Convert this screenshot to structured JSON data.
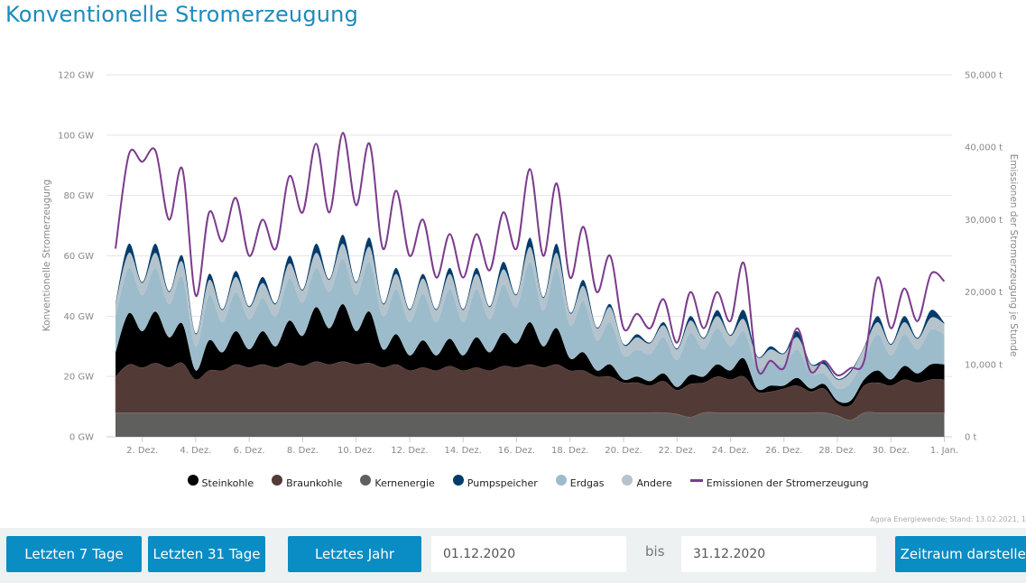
{
  "title": "Konventionelle Stromerzeugung",
  "source": "Agora Energiewende; Stand: 13.02.2021, 1",
  "controls": {
    "btn_7": "Letzten 7 Tage",
    "btn_31": "Letzten 31 Tage",
    "btn_year": "Letztes Jahr",
    "from_value": "01.12.2020",
    "bis": "bis",
    "to_value": "31.12.2020",
    "show": "Zeitraum darstellen"
  },
  "chart_data": {
    "type": "area",
    "title": "Konventionelle Stromerzeugung",
    "ylabel": "Konventionelle Stromerzeugung",
    "y2label": "Emissionen der Stromerzeugung je Stunde",
    "ylim": [
      0,
      120
    ],
    "y2lim": [
      0,
      50000
    ],
    "yticks": [
      "0 GW",
      "20 GW",
      "40 GW",
      "60 GW",
      "80 GW",
      "100 GW",
      "120 GW"
    ],
    "y2ticks": [
      "0 t",
      "10,000 t",
      "20,000 t",
      "30,000 t",
      "40,000 t",
      "50,000 t"
    ],
    "xticks": [
      {
        "day": 2,
        "label": "2. Dez."
      },
      {
        "day": 4,
        "label": "4. Dez."
      },
      {
        "day": 6,
        "label": "6. Dez."
      },
      {
        "day": 8,
        "label": "8. Dez."
      },
      {
        "day": 10,
        "label": "10. Dez."
      },
      {
        "day": 12,
        "label": "12. Dez."
      },
      {
        "day": 14,
        "label": "14. Dez."
      },
      {
        "day": 16,
        "label": "16. Dez."
      },
      {
        "day": 18,
        "label": "18. Dez."
      },
      {
        "day": 20,
        "label": "20. Dez."
      },
      {
        "day": 22,
        "label": "22. Dez."
      },
      {
        "day": 24,
        "label": "24. Dez."
      },
      {
        "day": 26,
        "label": "26. Dez."
      },
      {
        "day": 28,
        "label": "28. Dez."
      },
      {
        "day": 30,
        "label": "30. Dez."
      },
      {
        "day": 32,
        "label": "1. Jan."
      }
    ],
    "x_step_hours": 12,
    "x_start": "01.12.2020 00:00",
    "grid": true,
    "legend_position": "bottom",
    "series": [
      {
        "name": "Kernenergie",
        "color": "#5f605e",
        "values": [
          8,
          8,
          8,
          8,
          8,
          8,
          8,
          8,
          8,
          8,
          8,
          8,
          8,
          8,
          8,
          8,
          8,
          8,
          8,
          8,
          8,
          8,
          8,
          8,
          8,
          8,
          8,
          8,
          8,
          8,
          8,
          8,
          8,
          8,
          8,
          8,
          8,
          8,
          8,
          8,
          8,
          8,
          7.5,
          6.5,
          8,
          8,
          8,
          8,
          8,
          8,
          8,
          8,
          8,
          8,
          7,
          5.5,
          8,
          8,
          8,
          8,
          8,
          8,
          8
        ]
      },
      {
        "name": "Braunkohle",
        "color": "#523a37",
        "values": [
          12,
          16,
          15,
          16.5,
          15,
          16.5,
          11,
          14,
          14,
          16,
          15,
          16,
          15,
          16.5,
          15.5,
          17,
          16,
          17,
          16,
          16.5,
          15,
          16,
          14,
          15,
          14,
          15.5,
          14,
          15,
          14,
          15.5,
          15,
          16,
          15,
          16,
          14,
          14,
          12,
          12,
          10,
          10,
          9,
          10.5,
          8,
          11,
          10,
          12,
          11,
          12,
          7,
          7,
          8,
          9,
          7,
          8,
          4,
          5,
          9,
          10,
          9,
          11,
          10,
          11,
          11
        ]
      },
      {
        "name": "Steinkohle",
        "color": "#000000",
        "values": [
          8,
          17,
          12,
          17,
          10,
          13,
          3,
          10,
          6,
          11,
          6,
          11,
          7,
          14,
          10,
          18,
          12,
          19,
          11,
          17,
          6,
          10,
          5,
          9,
          5,
          9,
          5,
          10,
          6,
          11,
          8,
          14,
          7,
          12,
          4,
          6,
          2,
          4,
          1,
          2,
          1.5,
          2.5,
          1,
          3,
          2,
          4,
          3,
          6,
          1,
          2,
          1,
          2.5,
          1,
          1.5,
          1,
          1.5,
          2,
          4,
          2,
          4.5,
          3,
          5,
          5
        ]
      },
      {
        "name": "Erdgas",
        "color": "#9dbccb",
        "values": [
          12,
          15,
          12,
          14.5,
          11,
          15.5,
          8,
          15,
          10,
          13,
          10,
          11,
          10,
          14,
          11,
          13,
          12,
          15,
          12,
          16.5,
          11,
          15,
          11,
          15.5,
          11,
          16.5,
          11,
          16,
          11,
          16,
          12,
          20,
          12,
          20,
          11,
          17,
          10,
          14,
          8,
          9,
          9,
          12,
          9,
          14,
          9,
          12,
          8,
          9,
          7,
          8,
          7,
          9.5,
          5,
          3.5,
          4,
          6,
          7,
          12,
          8,
          10.5,
          8,
          11.5,
          10
        ]
      },
      {
        "name": "Andere",
        "color": "#b5c3cc",
        "values": [
          4,
          5,
          4,
          5,
          4,
          5,
          4,
          5,
          4,
          5,
          4,
          5,
          4,
          5,
          4,
          5,
          4,
          5,
          4,
          5,
          4,
          5,
          4,
          5,
          4,
          5,
          4,
          5,
          4,
          5,
          4,
          5,
          4,
          5,
          4,
          5,
          4,
          5,
          3.5,
          4,
          3.5,
          4,
          3.5,
          4,
          3.5,
          4,
          3.5,
          4,
          3.5,
          4,
          3.5,
          4,
          3,
          3,
          3,
          3.5,
          3.5,
          4,
          3.5,
          4,
          3.5,
          4,
          3.5
        ]
      },
      {
        "name": "Pumpspeicher",
        "color": "#003b6a",
        "values": [
          0.3,
          3,
          0.3,
          3,
          0.3,
          2,
          0.3,
          2,
          0.3,
          2,
          0.3,
          2,
          0.3,
          2.5,
          0.3,
          3,
          0.3,
          3,
          0.3,
          3,
          0.3,
          2,
          0.3,
          1.5,
          0.3,
          2,
          0.3,
          2,
          0.3,
          2.5,
          0.3,
          3,
          0.3,
          3,
          0.3,
          2,
          0.3,
          1,
          0.3,
          1,
          0.3,
          1,
          0.3,
          1.5,
          0.3,
          2,
          0.3,
          3,
          0.3,
          1,
          0.3,
          2,
          0.3,
          1,
          0.3,
          0.5,
          0.3,
          2,
          0.3,
          2,
          0.3,
          2.5,
          0.3
        ]
      }
    ],
    "emissions": {
      "name": "Emissionen der Stromerzeugung",
      "color": "#7b3b8c",
      "unit": "t",
      "values": [
        26000,
        39000,
        38000,
        39500,
        30000,
        37000,
        19500,
        31000,
        27000,
        33000,
        25000,
        30000,
        26000,
        36000,
        31000,
        40500,
        31000,
        42000,
        32000,
        40500,
        26000,
        34000,
        25000,
        30000,
        22000,
        28000,
        22000,
        28000,
        23000,
        31000,
        26000,
        37000,
        25000,
        35000,
        22000,
        29000,
        20000,
        25000,
        15000,
        17000,
        15000,
        19000,
        13000,
        20000,
        15000,
        20000,
        16000,
        24000,
        9500,
        10500,
        9500,
        15000,
        9000,
        10500,
        8500,
        9500,
        10500,
        22000,
        15000,
        20500,
        16000,
        22500,
        21500
      ]
    },
    "legend": [
      "Steinkohle",
      "Braunkohle",
      "Kernenergie",
      "Pumpspeicher",
      "Erdgas",
      "Andere",
      "Emissionen der Stromerzeugung"
    ]
  }
}
